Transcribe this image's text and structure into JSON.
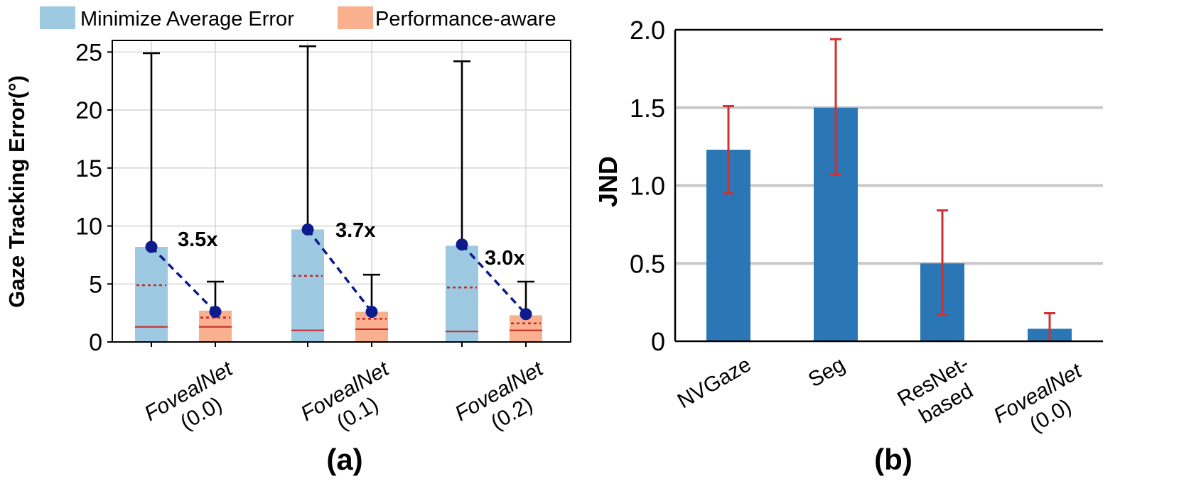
{
  "colors": {
    "min_avg": "#9ecae1",
    "perf_aware": "#f8b08f",
    "median_line": "#c62828",
    "mean_line": "#c62828",
    "whisker": "#000000",
    "dot": "#0d1b8c",
    "dash_connector": "#0d1b8c",
    "bar": "#2b77b5",
    "errorbar": "#d32f2f",
    "grid_a": "#cfcfcf",
    "grid_b": "#c8c8c8"
  },
  "chart_data": [
    {
      "panel": "(a)",
      "type": "box",
      "ylabel": "Gaze Tracking Error(°)",
      "ylim": [
        0,
        26
      ],
      "yticks": [
        0,
        5,
        10,
        15,
        20,
        25
      ],
      "ytick_labels": [
        "0",
        "5",
        "10",
        "15",
        "20",
        "25"
      ],
      "grid": true,
      "legend": {
        "position": "top",
        "entries": [
          {
            "key": "min_avg",
            "label": "Minimize Average Error"
          },
          {
            "key": "perf_aware",
            "label": "Performance-aware"
          }
        ]
      },
      "categories": [
        {
          "line1": "FovealNet",
          "line2": "(0.0)"
        },
        {
          "line1": "FovealNet",
          "line2": "(0.1)"
        },
        {
          "line1": "FovealNet",
          "line2": "(0.2)"
        }
      ],
      "series": [
        {
          "name": "Minimize Average Error",
          "key": "min_avg",
          "boxes": [
            {
              "top": 8.2,
              "median": 1.3,
              "mean": 4.9,
              "whisker_high": 24.9,
              "highlight": 8.2
            },
            {
              "top": 9.7,
              "median": 1.0,
              "mean": 5.7,
              "whisker_high": 25.5,
              "highlight": 9.7
            },
            {
              "top": 8.3,
              "median": 0.9,
              "mean": 4.7,
              "whisker_high": 24.2,
              "highlight": 8.4
            }
          ]
        },
        {
          "name": "Performance-aware",
          "key": "perf_aware",
          "boxes": [
            {
              "top": 2.7,
              "median": 1.3,
              "mean": 2.1,
              "whisker_high": 5.2,
              "highlight": 2.6
            },
            {
              "top": 2.6,
              "median": 1.1,
              "mean": 2.0,
              "whisker_high": 5.8,
              "highlight": 2.6
            },
            {
              "top": 2.3,
              "median": 1.0,
              "mean": 1.6,
              "whisker_high": 5.2,
              "highlight": 2.4
            }
          ]
        }
      ],
      "annotations": [
        "3.5x",
        "3.7x",
        "3.0x"
      ]
    },
    {
      "panel": "(b)",
      "type": "bar",
      "ylabel": "JND",
      "ylim": [
        0,
        2.0
      ],
      "yticks": [
        0,
        0.5,
        1.0,
        1.5,
        2.0
      ],
      "ytick_labels": [
        "0",
        "0.5",
        "1.0",
        "1.5",
        "2.0"
      ],
      "grid": true,
      "categories": [
        {
          "line1": "NVGaze",
          "line2": ""
        },
        {
          "line1": "Seg",
          "line2": ""
        },
        {
          "line1": "ResNet-",
          "line2": "based"
        },
        {
          "line1": "FovealNet",
          "line2": "(0.0)"
        }
      ],
      "values": [
        1.23,
        1.5,
        0.5,
        0.08
      ],
      "errors": [
        [
          0.95,
          1.51
        ],
        [
          1.07,
          1.94
        ],
        [
          0.17,
          0.84
        ],
        [
          0.0,
          0.18
        ]
      ]
    }
  ]
}
